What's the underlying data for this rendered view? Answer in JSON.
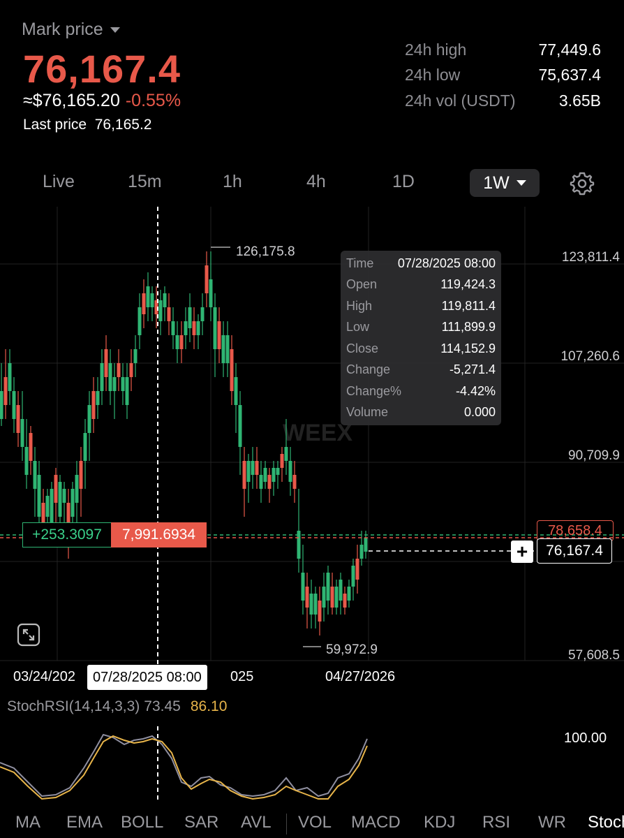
{
  "header": {
    "mark_label": "Mark price",
    "price": "76,167.4",
    "usd_price": "≈$76,165.20",
    "change_pct": "-0.55%",
    "last_price_label": "Last price",
    "last_price": "76,165.2"
  },
  "stats": [
    {
      "label": "24h high",
      "value": "77,449.6"
    },
    {
      "label": "24h low",
      "value": "75,637.4"
    },
    {
      "label": "24h vol (USDT)",
      "value": "3.65B"
    }
  ],
  "tabs": {
    "live": "Live",
    "m15": "15m",
    "h1": "1h",
    "h4": "4h",
    "d1": "1D",
    "w1": "1W"
  },
  "chart": {
    "y_labels": [
      "123,811.4",
      "107,260.6",
      "90,709.9",
      "57,608.5"
    ],
    "high_label": "126,175.8",
    "low_label": "59,972.9",
    "dates": [
      "03/24/202",
      "025",
      "04/27/2026"
    ],
    "crosshair_date": "07/28/2025 08:00",
    "liq_price": "78,658.4",
    "current_price": "76,167.4",
    "pos_pnl": "+253.3097",
    "pos_value": "7,991.6934",
    "watermark": "WEEX",
    "colors": {
      "up": "#2fb573",
      "down": "#e8594a"
    }
  },
  "tooltip": {
    "rows": [
      {
        "k": "Time",
        "v": "07/28/2025 08:00"
      },
      {
        "k": "Open",
        "v": "119,424.3"
      },
      {
        "k": "High",
        "v": "119,811.4"
      },
      {
        "k": "Low",
        "v": "111,899.9"
      },
      {
        "k": "Close",
        "v": "114,152.9"
      },
      {
        "k": "Change",
        "v": "-5,271.4"
      },
      {
        "k": "Change%",
        "v": "-4.42%"
      },
      {
        "k": "Volume",
        "v": "0.000"
      }
    ]
  },
  "stoch": {
    "title": "StochRSI(14,14,3,3)",
    "k": "73.45",
    "d": "86.10",
    "level": "100.00"
  },
  "indicators": [
    "MA",
    "EMA",
    "BOLL",
    "SAR",
    "AVL",
    "VOL",
    "MACD",
    "KDJ",
    "RSI",
    "WR",
    "Stoch"
  ]
}
